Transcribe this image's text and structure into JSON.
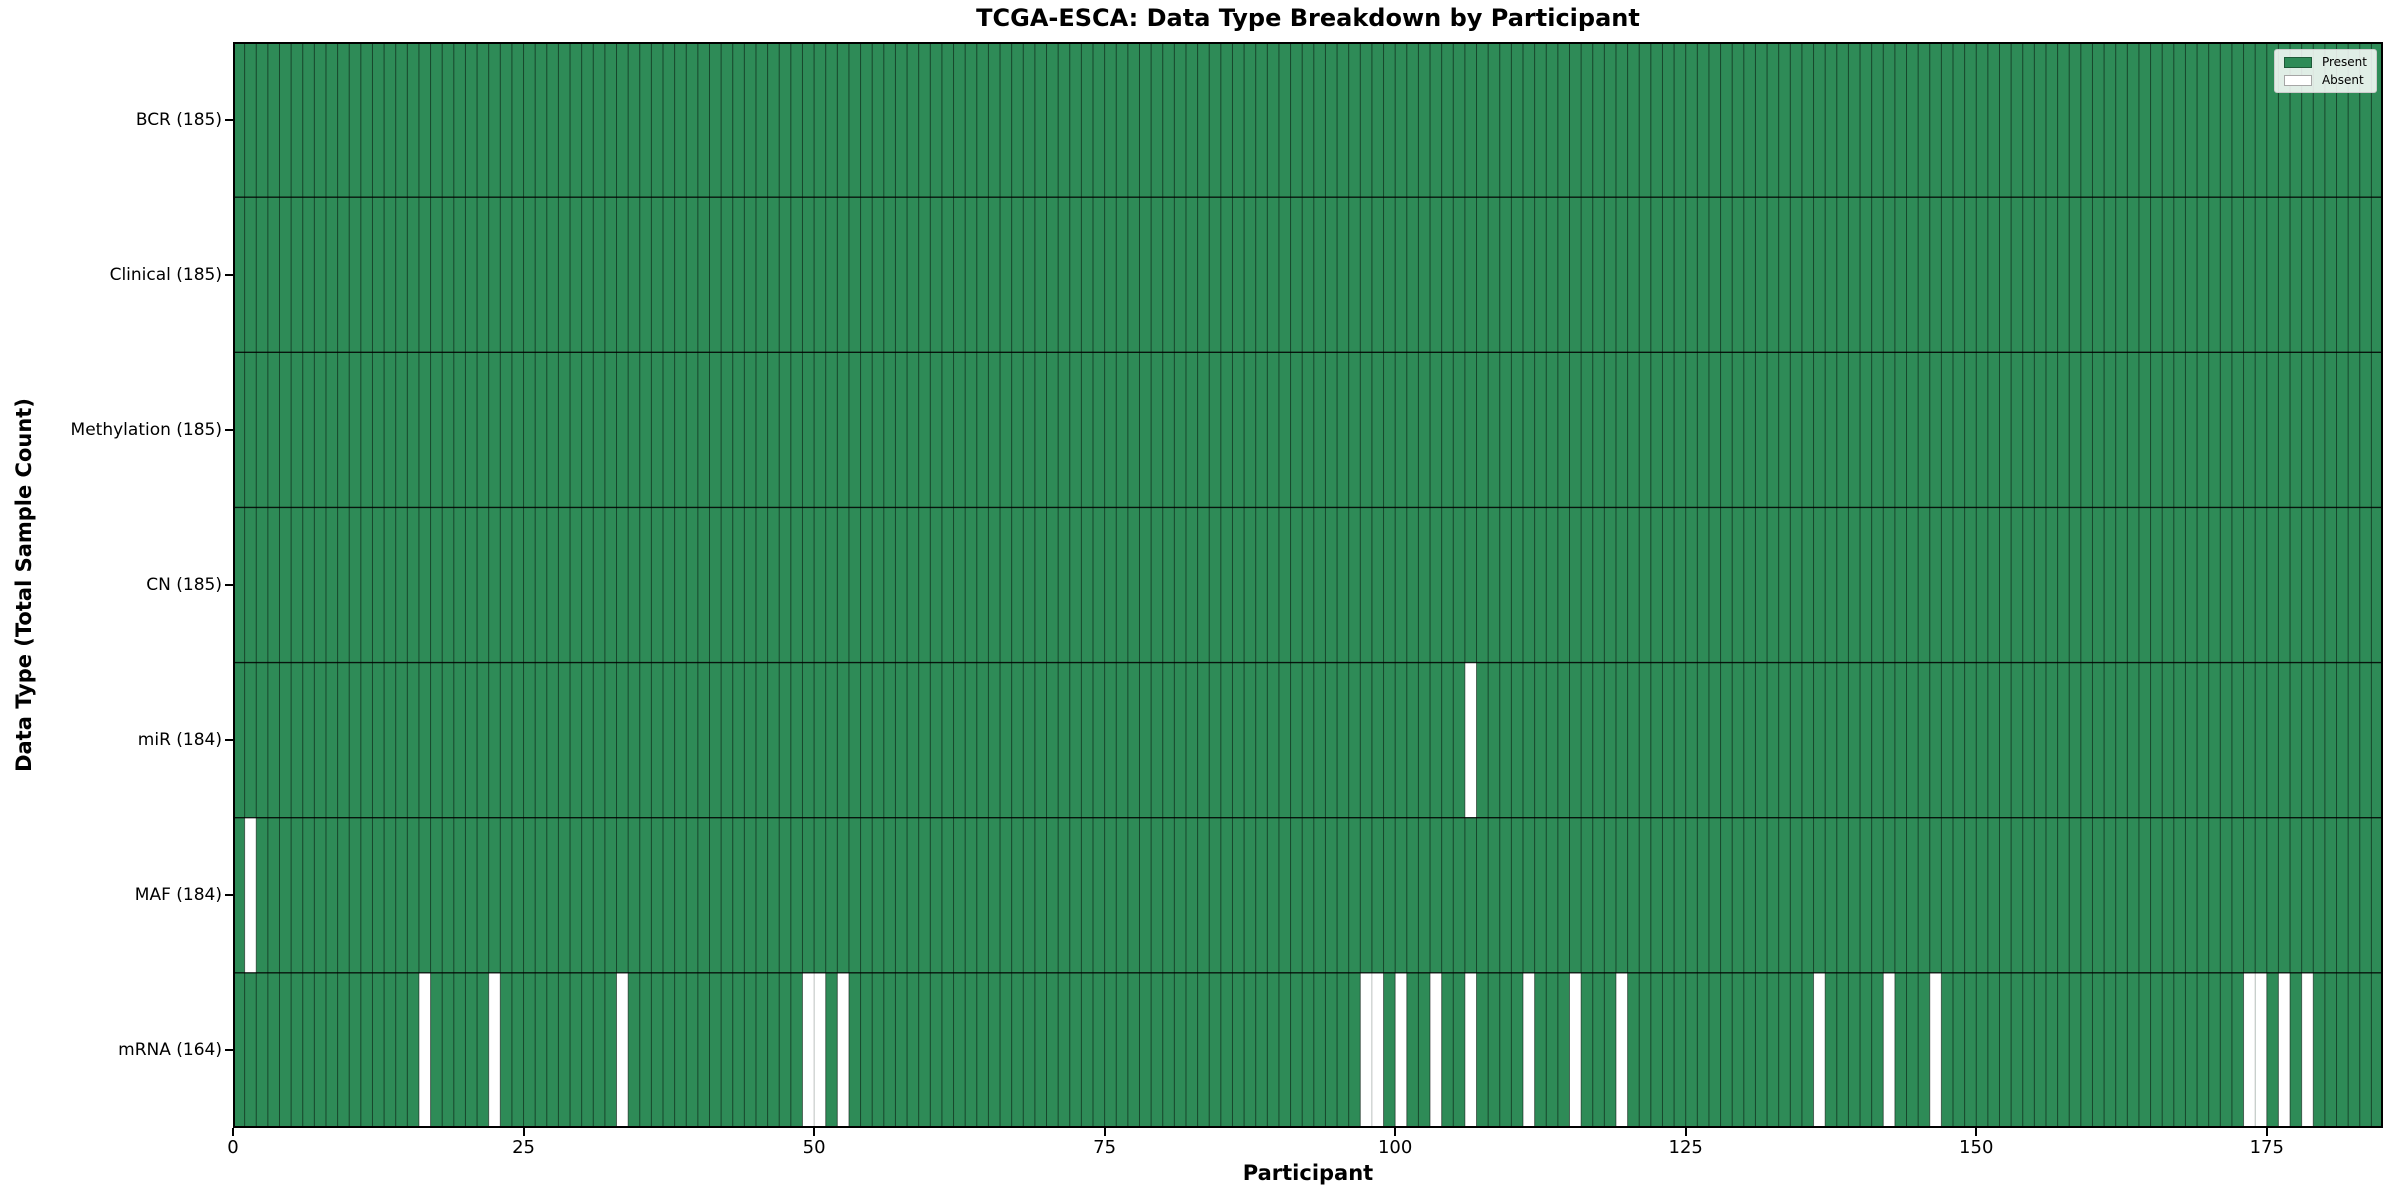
{
  "chart_data": {
    "type": "heatmap",
    "title": "TCGA-ESCA: Data Type Breakdown by Participant",
    "xlabel": "Participant",
    "ylabel": "Data Type (Total Sample Count)",
    "n_participants": 185,
    "x_ticks": [
      0,
      25,
      50,
      75,
      100,
      125,
      150,
      175
    ],
    "x_range": [
      0,
      185
    ],
    "grid": "cell-edges-on",
    "legend_position": "upper-right",
    "present_color": "#2e8b57",
    "absent_color": "#ffffff",
    "legend": [
      {
        "label": "Present",
        "color": "#2e8b57"
      },
      {
        "label": "Absent",
        "color": "#ffffff"
      }
    ],
    "rows": [
      {
        "label": "BCR (185)",
        "data_type": "BCR",
        "present_count": 185,
        "absent_participants": []
      },
      {
        "label": "Clinical (185)",
        "data_type": "Clinical",
        "present_count": 185,
        "absent_participants": []
      },
      {
        "label": "Methylation (185)",
        "data_type": "Methylation",
        "present_count": 185,
        "absent_participants": []
      },
      {
        "label": "CN (185)",
        "data_type": "CN",
        "present_count": 185,
        "absent_participants": []
      },
      {
        "label": "miR (184)",
        "data_type": "miR",
        "present_count": 184,
        "absent_participants": [
          106
        ]
      },
      {
        "label": "MAF (184)",
        "data_type": "MAF",
        "present_count": 184,
        "absent_participants": [
          1
        ]
      },
      {
        "label": "mRNA (164)",
        "data_type": "mRNA",
        "present_count": 164,
        "absent_participants": [
          16,
          22,
          33,
          49,
          50,
          52,
          97,
          98,
          100,
          103,
          106,
          111,
          115,
          119,
          136,
          142,
          146,
          173,
          174,
          176,
          178
        ]
      }
    ]
  }
}
